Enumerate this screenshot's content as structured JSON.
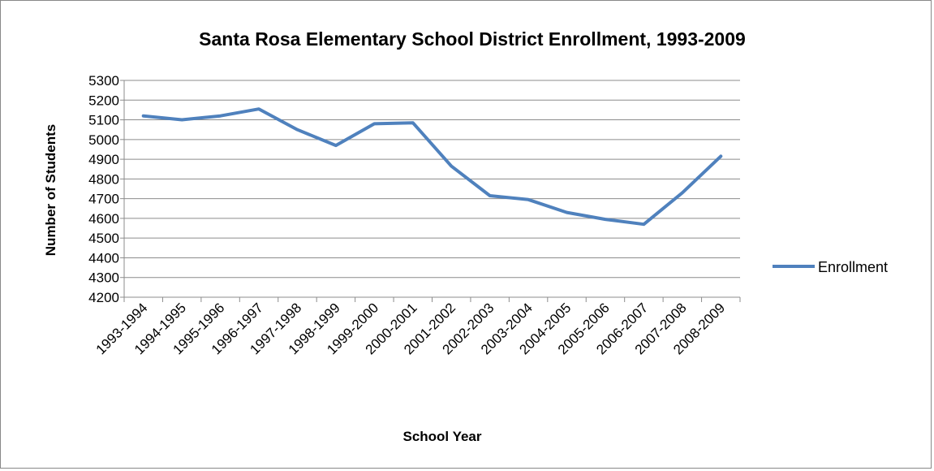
{
  "chart_data": {
    "type": "line",
    "title": "Santa Rosa Elementary School District Enrollment, 1993-2009",
    "xlabel": "School Year",
    "ylabel": "Number of Students",
    "categories": [
      "1993-1994",
      "1994-1995",
      "1995-1996",
      "1996-1997",
      "1997-1998",
      "1998-1999",
      "1999-2000",
      "2000-2001",
      "2001-2002",
      "2002-2003",
      "2003-2004",
      "2004-2005",
      "2005-2006",
      "2006-2007",
      "2007-2008",
      "2008-2009"
    ],
    "series": [
      {
        "name": "Enrollment",
        "color": "#4f81bd",
        "values": [
          5120,
          5100,
          5120,
          5155,
          5050,
          4970,
          5080,
          5085,
          4865,
          4715,
          4695,
          4630,
          4595,
          4570,
          4730,
          4915
        ]
      }
    ],
    "ylim": [
      4200,
      5300
    ],
    "ytick_step": 100,
    "grid": "horizontal",
    "legend_position": "right"
  }
}
